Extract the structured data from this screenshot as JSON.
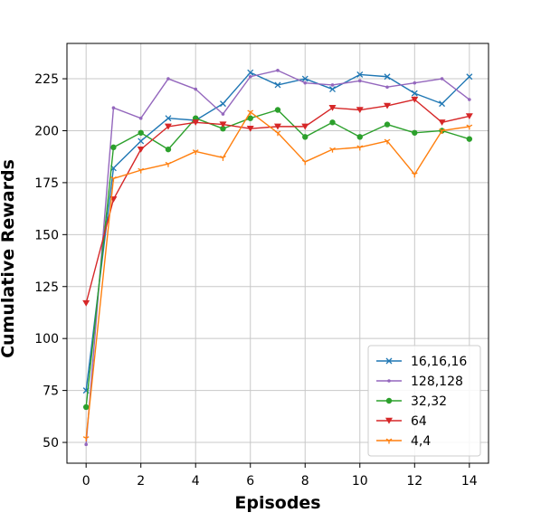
{
  "chart_data": {
    "type": "line",
    "xlabel": "Episodes",
    "ylabel": "Cumulative Rewards",
    "xlim": [
      -0.7,
      14.7
    ],
    "ylim": [
      40,
      242
    ],
    "xticks": [
      0,
      2,
      4,
      6,
      8,
      10,
      12,
      14
    ],
    "yticks": [
      50,
      75,
      100,
      125,
      150,
      175,
      200,
      225
    ],
    "grid": true,
    "legend_position": "bottom-right",
    "x": [
      0,
      1,
      2,
      3,
      4,
      5,
      6,
      7,
      8,
      9,
      10,
      11,
      12,
      13,
      14
    ],
    "series": [
      {
        "name": "16,16,16",
        "color": "#1f77b4",
        "marker": "x",
        "values": [
          75,
          182,
          195,
          206,
          205,
          213,
          228,
          222,
          225,
          220,
          227,
          226,
          218,
          213,
          226
        ]
      },
      {
        "name": "128,128",
        "color": "#9467bd",
        "marker": "dot",
        "values": [
          49,
          211,
          206,
          225,
          220,
          208,
          226,
          229,
          223,
          222,
          224,
          221,
          223,
          225,
          215
        ]
      },
      {
        "name": "32,32",
        "color": "#2ca02c",
        "marker": "circle",
        "values": [
          67,
          192,
          199,
          191,
          206,
          201,
          206,
          210,
          197,
          204,
          197,
          203,
          199,
          200,
          196
        ]
      },
      {
        "name": "64",
        "color": "#d62728",
        "marker": "triangle",
        "values": [
          117,
          167,
          191,
          202,
          204,
          203,
          201,
          202,
          202,
          211,
          210,
          212,
          215,
          204,
          207
        ]
      },
      {
        "name": "4,4",
        "color": "#ff7f0e",
        "marker": "tri",
        "values": [
          52,
          177,
          181,
          184,
          190,
          187,
          209,
          199,
          185,
          191,
          192,
          195,
          179,
          200,
          202
        ]
      }
    ]
  }
}
